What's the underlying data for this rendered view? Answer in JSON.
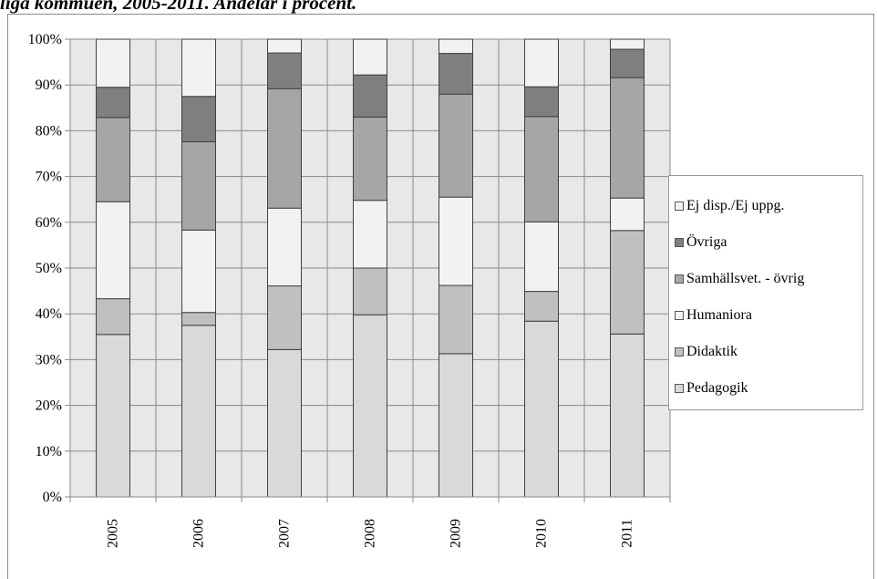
{
  "title_fragment": "liga kommuen, 2005-2011. Andelar i procent.",
  "chart_data": {
    "type": "bar",
    "stacked": true,
    "categories": [
      "2005",
      "2006",
      "2007",
      "2008",
      "2009",
      "2010",
      "2011"
    ],
    "ylim": [
      0,
      100
    ],
    "y_tick_labels": [
      "0%",
      "10%",
      "20%",
      "30%",
      "40%",
      "50%",
      "60%",
      "70%",
      "80%",
      "90%",
      "100%"
    ],
    "grid": true,
    "legend_position": "right",
    "series": [
      {
        "name": "Pedagogik",
        "color": "#d9d9d9",
        "values": [
          35.5,
          37.5,
          32.2,
          39.8,
          31.3,
          38.4,
          35.6
        ]
      },
      {
        "name": "Didaktik",
        "color": "#c0c0c0",
        "values": [
          7.8,
          2.8,
          13.9,
          10.2,
          14.9,
          6.5,
          22.6
        ]
      },
      {
        "name": "Humaniora",
        "color": "#f2f2f2",
        "values": [
          21.2,
          18.0,
          17.0,
          14.8,
          19.3,
          15.2,
          7.1
        ]
      },
      {
        "name": "Samhällsvet. - övrig",
        "color": "#a6a6a6",
        "values": [
          18.4,
          19.3,
          26.1,
          18.2,
          22.5,
          23.0,
          26.3
        ]
      },
      {
        "name": "Övriga",
        "color": "#7f7f7f",
        "values": [
          6.6,
          9.9,
          7.8,
          9.2,
          8.9,
          6.5,
          6.2
        ]
      },
      {
        "name": "Ej disp./Ej uppg.",
        "color": "#f2f2f2",
        "values": [
          10.5,
          12.5,
          3.0,
          7.8,
          3.1,
          10.4,
          2.2
        ]
      }
    ],
    "legend_order": [
      "Ej disp./Ej uppg.",
      "Övriga",
      "Samhällsvet. - övrig",
      "Humaniora",
      "Didaktik",
      "Pedagogik"
    ]
  }
}
